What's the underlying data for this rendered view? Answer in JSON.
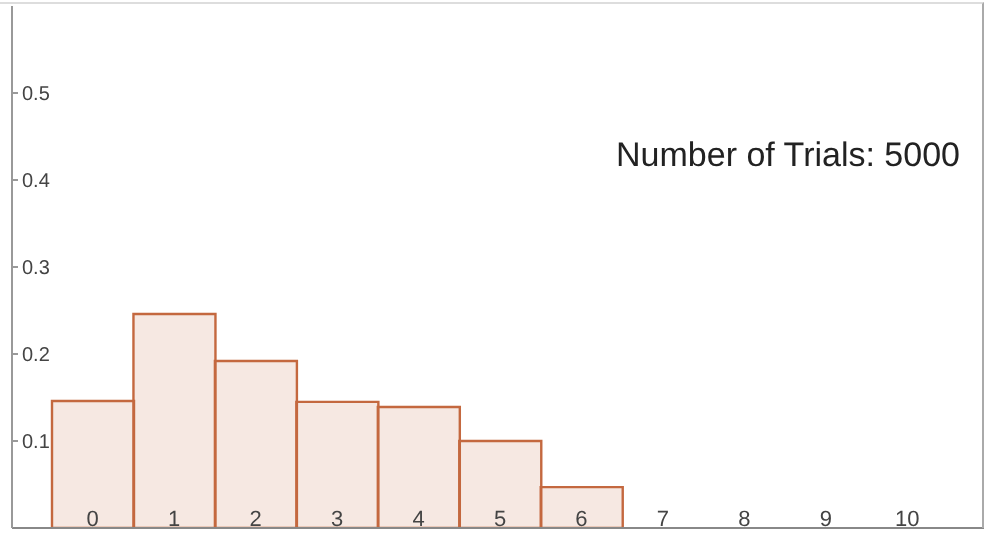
{
  "chart_data": {
    "type": "bar",
    "categories": [
      "0",
      "1",
      "2",
      "3",
      "4",
      "5",
      "6",
      "7",
      "8",
      "9",
      "10"
    ],
    "values": [
      0.146,
      0.246,
      0.192,
      0.145,
      0.139,
      0.1,
      0.047,
      0,
      0,
      0,
      0
    ],
    "color": "#c4683f",
    "ylim": [
      0,
      0.6
    ],
    "yticks": [
      0.1,
      0.2,
      0.3,
      0.4,
      0.5
    ],
    "annotations": [
      "Number of Trials: 5000"
    ]
  }
}
